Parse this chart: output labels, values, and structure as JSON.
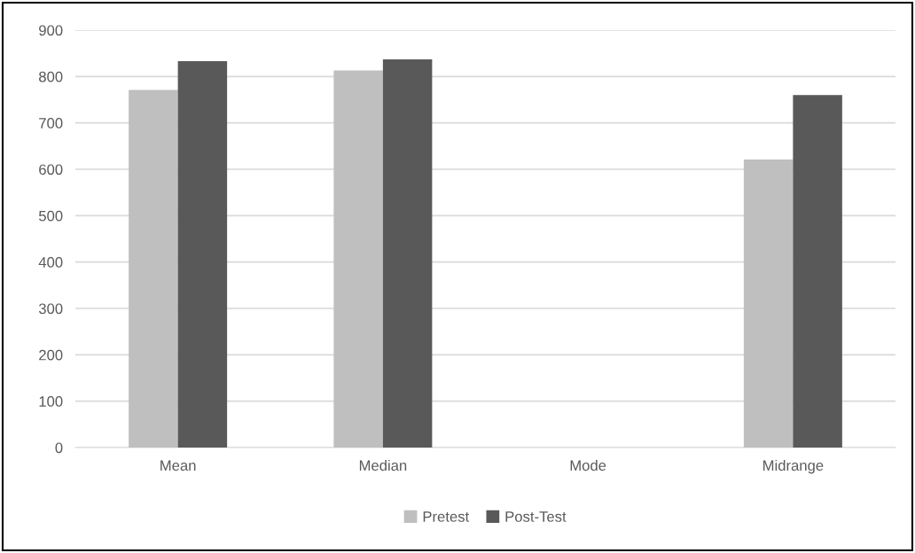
{
  "chart_data": {
    "type": "bar",
    "categories": [
      "Mean",
      "Median",
      "Mode",
      "Midrange"
    ],
    "series": [
      {
        "name": "Pretest",
        "color": "#bfbfbf",
        "values": [
          771,
          813,
          0,
          621
        ]
      },
      {
        "name": "Post-Test",
        "color": "#595959",
        "values": [
          833,
          837,
          0,
          760
        ]
      }
    ],
    "ylim": [
      0,
      900
    ],
    "yticks": [
      0,
      100,
      200,
      300,
      400,
      500,
      600,
      700,
      800,
      900
    ],
    "grid": "y",
    "legend": "bottom"
  }
}
